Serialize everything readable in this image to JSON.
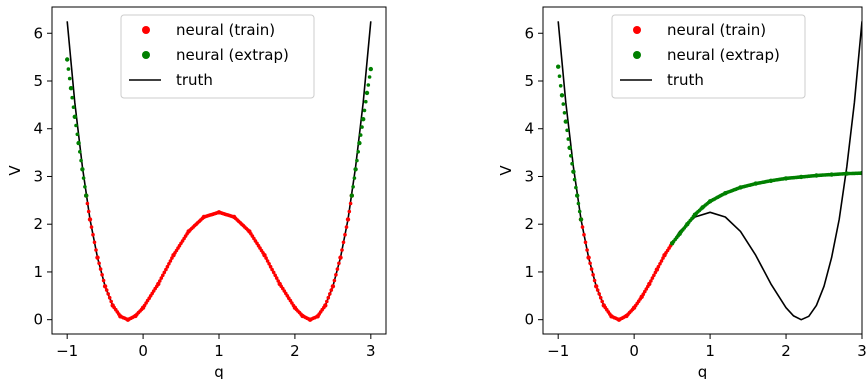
{
  "chart_data": [
    {
      "type": "line",
      "title": "",
      "xlabel": "q",
      "ylabel": "V",
      "xlim": [
        -1.2,
        3.2
      ],
      "ylim": [
        -0.3,
        6.55
      ],
      "xticks": [
        -1,
        0,
        1,
        2,
        3
      ],
      "yticks": [
        0,
        1,
        2,
        3,
        4,
        5,
        6
      ],
      "legend_position": "upper-center",
      "legend": [
        {
          "label": "neural (train)",
          "marker": "dot",
          "color": "#ff0000"
        },
        {
          "label": "neural (extrap)",
          "marker": "dot",
          "color": "#008000"
        },
        {
          "label": "truth",
          "marker": "line",
          "color": "#000000"
        }
      ],
      "series": [
        {
          "name": "truth",
          "color": "#000000",
          "style": "line",
          "x": [
            -1,
            -0.9,
            -0.8,
            -0.7,
            -0.6,
            -0.5,
            -0.4,
            -0.3,
            -0.2,
            -0.1,
            0,
            0.2,
            0.4,
            0.6,
            0.8,
            1.0,
            1.2,
            1.4,
            1.6,
            1.8,
            2.0,
            2.1,
            2.2,
            2.3,
            2.4,
            2.5,
            2.6,
            2.7,
            2.8,
            2.9,
            3.0
          ],
          "y": [
            6.25,
            4.55,
            3.2,
            2.1,
            1.3,
            0.7,
            0.3,
            0.07,
            0.0,
            0.08,
            0.25,
            0.75,
            1.35,
            1.85,
            2.15,
            2.25,
            2.15,
            1.85,
            1.35,
            0.75,
            0.25,
            0.08,
            0.0,
            0.07,
            0.3,
            0.7,
            1.3,
            2.1,
            3.2,
            4.55,
            6.25
          ]
        },
        {
          "name": "neural (train)",
          "color": "#ff0000",
          "style": "dots",
          "x": [
            -0.75,
            -0.7,
            -0.6,
            -0.5,
            -0.4,
            -0.3,
            -0.2,
            -0.1,
            0,
            0.2,
            0.4,
            0.6,
            0.8,
            1.0,
            1.2,
            1.4,
            1.6,
            1.8,
            2.0,
            2.1,
            2.2,
            2.3,
            2.4,
            2.5,
            2.6,
            2.7,
            2.75
          ],
          "y": [
            2.6,
            2.1,
            1.3,
            0.7,
            0.3,
            0.07,
            0.0,
            0.08,
            0.25,
            0.75,
            1.35,
            1.85,
            2.15,
            2.25,
            2.15,
            1.85,
            1.35,
            0.75,
            0.25,
            0.08,
            0.0,
            0.07,
            0.3,
            0.7,
            1.3,
            2.1,
            2.6
          ]
        },
        {
          "name": "neural (extrap)",
          "color": "#008000",
          "style": "dots",
          "x": [
            -1.0,
            -0.95,
            -0.9,
            -0.85,
            -0.8,
            -0.75,
            2.75,
            2.8,
            2.85,
            2.9,
            2.95,
            3.0
          ],
          "y": [
            5.45,
            4.85,
            4.25,
            3.7,
            3.15,
            2.6,
            2.6,
            3.15,
            3.7,
            4.2,
            4.75,
            5.25
          ]
        }
      ]
    },
    {
      "type": "line",
      "title": "",
      "xlabel": "q",
      "ylabel": "V",
      "xlim": [
        -1.2,
        3.0
      ],
      "ylim": [
        -0.3,
        6.55
      ],
      "xticks": [
        -1,
        0,
        1,
        2,
        3
      ],
      "yticks": [
        0,
        1,
        2,
        3,
        4,
        5,
        6
      ],
      "legend_position": "upper-center",
      "legend": [
        {
          "label": "neural (train)",
          "marker": "dot",
          "color": "#ff0000"
        },
        {
          "label": "neural (extrap)",
          "marker": "dot",
          "color": "#008000"
        },
        {
          "label": "truth",
          "marker": "line",
          "color": "#000000"
        }
      ],
      "series": [
        {
          "name": "truth",
          "color": "#000000",
          "style": "line",
          "x": [
            -1,
            -0.9,
            -0.8,
            -0.7,
            -0.6,
            -0.5,
            -0.4,
            -0.3,
            -0.2,
            -0.1,
            0,
            0.2,
            0.4,
            0.6,
            0.8,
            1.0,
            1.2,
            1.4,
            1.6,
            1.8,
            2.0,
            2.1,
            2.2,
            2.3,
            2.4,
            2.5,
            2.6,
            2.7,
            2.8,
            2.9,
            3.0
          ],
          "y": [
            6.25,
            4.55,
            3.2,
            2.1,
            1.3,
            0.7,
            0.3,
            0.07,
            0.0,
            0.08,
            0.25,
            0.75,
            1.35,
            1.85,
            2.15,
            2.25,
            2.15,
            1.85,
            1.35,
            0.75,
            0.25,
            0.08,
            0.0,
            0.07,
            0.3,
            0.7,
            1.3,
            2.1,
            3.2,
            4.55,
            6.25
          ]
        },
        {
          "name": "neural (train)",
          "color": "#ff0000",
          "style": "dots",
          "x": [
            -0.7,
            -0.6,
            -0.5,
            -0.4,
            -0.3,
            -0.2,
            -0.1,
            0,
            0.1,
            0.2,
            0.3,
            0.4,
            0.5
          ],
          "y": [
            2.1,
            1.3,
            0.7,
            0.3,
            0.07,
            0.0,
            0.08,
            0.25,
            0.48,
            0.75,
            1.05,
            1.35,
            1.6
          ]
        },
        {
          "name": "neural (extrap)",
          "color": "#008000",
          "style": "dots",
          "x": [
            -1.0,
            -0.95,
            -0.9,
            -0.85,
            -0.8,
            -0.75,
            -0.7,
            0.5,
            0.6,
            0.7,
            0.8,
            0.9,
            1.0,
            1.2,
            1.4,
            1.6,
            1.8,
            2.0,
            2.2,
            2.4,
            2.6,
            2.8,
            3.0
          ],
          "y": [
            5.3,
            4.7,
            4.15,
            3.6,
            3.1,
            2.6,
            2.1,
            1.6,
            1.8,
            2.0,
            2.2,
            2.35,
            2.48,
            2.65,
            2.77,
            2.85,
            2.91,
            2.96,
            2.99,
            3.02,
            3.04,
            3.06,
            3.07
          ]
        }
      ]
    }
  ]
}
